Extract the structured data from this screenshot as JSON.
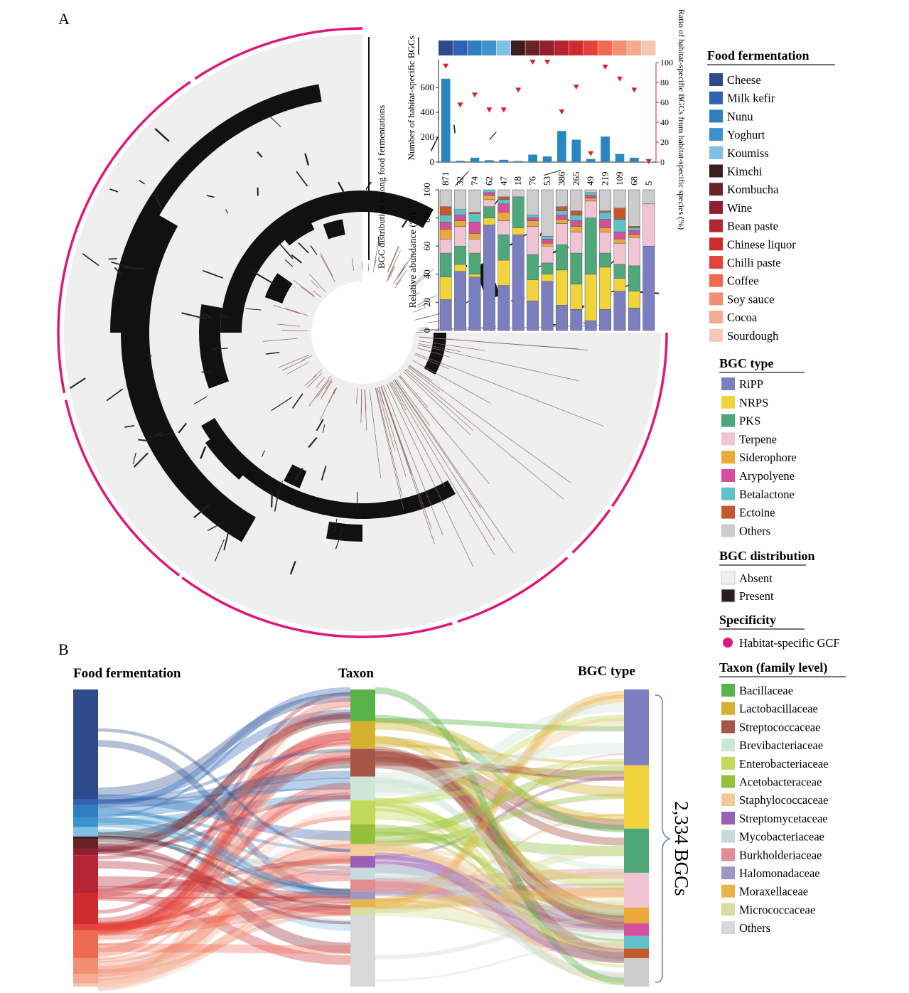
{
  "panels": {
    "a": "A",
    "b": "B"
  },
  "panel_a": {
    "ring_label": "BGC distribution among food fermentations"
  },
  "chart_data": [
    {
      "type": "bar",
      "panel": "A",
      "description_note": "",
      "categories": [
        "Cheese",
        "Milk kefir",
        "Nunu",
        "Yoghurt",
        "Koumiss",
        "Kimchi",
        "Kombucha",
        "Wine",
        "Bean paste",
        "Chinese liquor",
        "Chilli paste",
        "Coffee",
        "Soy sauce",
        "Cocoa",
        "Sourdough"
      ],
      "category_colors": [
        "#2e4a8b",
        "#2f62b0",
        "#2f7fc0",
        "#3b93cc",
        "#7fc0e4",
        "#3c1e1e",
        "#6b2226",
        "#8e2030",
        "#b52432",
        "#cf2a2e",
        "#e6423d",
        "#ef6a4f",
        "#f28f73",
        "#f4ab91",
        "#f6c9b5"
      ],
      "series": [
        {
          "name": "",
          "values": [
            670,
            10,
            35,
            15,
            18,
            8,
            60,
            45,
            250,
            180,
            25,
            205,
            65,
            35,
            3
          ]
        },
        {
          "name": "",
          "values": [
            96,
            57,
            67,
            52,
            52,
            72,
            100,
            100,
            50,
            75,
            8,
            95,
            83,
            72,
            0
          ]
        }
      ],
      "top_labels": [
        "871",
        "32",
        "74",
        "62",
        "47",
        "18",
        "76",
        "53",
        "386",
        "265",
        "49",
        "219",
        "109",
        "68",
        "5"
      ],
      "ylabel": "Number of habitat-specific BGCs",
      "y2label": "Ratio of habitat-specific BGCs from habitat-specific species (%)",
      "ylim": [
        0,
        800
      ],
      "yticks": [
        0,
        200,
        400,
        600
      ],
      "y2lim": [
        0,
        100
      ],
      "y2ticks": [
        0,
        20,
        40,
        60,
        80,
        100
      ],
      "bar_color": "#2a86c0",
      "marker_color": "#e02020"
    },
    {
      "type": "bar",
      "stacked": true,
      "panel": "A",
      "categories": [
        "Cheese",
        "Milk kefir",
        "Nunu",
        "Yoghurt",
        "Koumiss",
        "Kimchi",
        "Kombucha",
        "Wine",
        "Bean paste",
        "Chinese liquor",
        "Chilli paste",
        "Coffee",
        "Soy sauce",
        "Cocoa",
        "Sourdough"
      ],
      "series": [
        {
          "name": "RiPP",
          "color": "#7b7fc0",
          "values": [
            22,
            42,
            38,
            75,
            32,
            68,
            21,
            35,
            18,
            15,
            7,
            15,
            28,
            16,
            60
          ]
        },
        {
          "name": "NRPS",
          "color": "#f0d43a",
          "values": [
            16,
            5,
            2,
            5,
            18,
            5,
            15,
            5,
            25,
            18,
            33,
            30,
            9,
            12,
            0
          ]
        },
        {
          "name": "PKS",
          "color": "#4fa87a",
          "values": [
            17,
            13,
            15,
            8,
            18,
            22,
            18,
            8,
            18,
            22,
            40,
            10,
            10,
            18,
            0
          ]
        },
        {
          "name": "Terpene",
          "color": "#f0c4d2",
          "values": [
            10,
            14,
            10,
            5,
            10,
            0,
            20,
            12,
            15,
            15,
            12,
            15,
            15,
            20,
            30
          ]
        },
        {
          "name": "Siderophore",
          "color": "#eba83a",
          "values": [
            7,
            4,
            4,
            3,
            6,
            0,
            4,
            2,
            3,
            4,
            2,
            3,
            3,
            2,
            0
          ]
        },
        {
          "name": "Arypolyene",
          "color": "#d44f9d",
          "values": [
            5,
            4,
            8,
            2,
            6,
            0,
            2,
            3,
            3,
            4,
            2,
            6,
            5,
            3,
            0
          ]
        },
        {
          "name": "Betalactone",
          "color": "#5fc2c6",
          "values": [
            5,
            4,
            6,
            2,
            3,
            0,
            2,
            2,
            3,
            4,
            2,
            5,
            9,
            2,
            0
          ]
        },
        {
          "name": "Ectoine",
          "color": "#c7582d",
          "values": [
            6,
            0,
            1,
            0,
            2,
            0,
            0,
            0,
            3,
            3,
            0,
            1,
            8,
            1,
            0
          ]
        },
        {
          "name": "Others",
          "color": "#cccccc",
          "values": [
            12,
            14,
            16,
            0,
            5,
            5,
            18,
            33,
            12,
            15,
            2,
            15,
            13,
            26,
            10
          ]
        }
      ],
      "ylabel": "Relative abundance (%)",
      "ylim": [
        0,
        100
      ],
      "yticks": [
        0,
        20,
        40,
        60,
        80,
        100
      ]
    }
  ],
  "legends": {
    "food": {
      "title": "Food fermentation",
      "items": [
        {
          "label": "Cheese",
          "color": "#2e4a8b"
        },
        {
          "label": "Milk kefir",
          "color": "#2f62b0"
        },
        {
          "label": "Nunu",
          "color": "#2f7fc0"
        },
        {
          "label": "Yoghurt",
          "color": "#3b93cc"
        },
        {
          "label": "Koumiss",
          "color": "#7fc0e4"
        },
        {
          "label": "Kimchi",
          "color": "#3c1e1e"
        },
        {
          "label": "Kombucha",
          "color": "#6b2226"
        },
        {
          "label": "Wine",
          "color": "#8e2030"
        },
        {
          "label": "Bean paste",
          "color": "#b52432"
        },
        {
          "label": "Chinese liquor",
          "color": "#cf2a2e"
        },
        {
          "label": "Chilli paste",
          "color": "#e6423d"
        },
        {
          "label": "Coffee",
          "color": "#ef6a4f"
        },
        {
          "label": "Soy sauce",
          "color": "#f28f73"
        },
        {
          "label": "Cocoa",
          "color": "#f4ab91"
        },
        {
          "label": "Sourdough",
          "color": "#f6c9b5"
        }
      ]
    },
    "bgc": {
      "title": "BGC type",
      "items": [
        {
          "label": "RiPP",
          "color": "#7b7fc0"
        },
        {
          "label": "NRPS",
          "color": "#f0d43a"
        },
        {
          "label": "PKS",
          "color": "#4fa87a"
        },
        {
          "label": "Terpene",
          "color": "#f0c4d2"
        },
        {
          "label": "Siderophore",
          "color": "#eba83a"
        },
        {
          "label": "Arypolyene",
          "color": "#d44f9d"
        },
        {
          "label": "Betalactone",
          "color": "#5fc2c6"
        },
        {
          "label": "Ectoine",
          "color": "#c7582d"
        },
        {
          "label": "Others",
          "color": "#cccccc"
        }
      ]
    },
    "distribution": {
      "title": "BGC distribution",
      "items": [
        {
          "label": "Absent",
          "color": "#efefef"
        },
        {
          "label": "Present",
          "color": "#2a1f1f"
        }
      ]
    },
    "specificity": {
      "title": "Specificity",
      "items": [
        {
          "label": "Habitat-specific GCF",
          "color": "#e0177a"
        }
      ]
    },
    "taxon": {
      "title": "Taxon (family level)",
      "items": [
        {
          "label": "Bacillaceae",
          "color": "#5ab349"
        },
        {
          "label": "Lactobacillaceae",
          "color": "#d4b12e"
        },
        {
          "label": "Streptococcaceae",
          "color": "#a65647"
        },
        {
          "label": "Brevibacteriaceae",
          "color": "#cfe6d7"
        },
        {
          "label": "Enterobacteriaceae",
          "color": "#c2d95c"
        },
        {
          "label": "Acetobacteraceae",
          "color": "#94c13c"
        },
        {
          "label": "Staphylococcaceae",
          "color": "#f0cc9a"
        },
        {
          "label": "Streptomycetaceae",
          "color": "#9b5fb6"
        },
        {
          "label": "Mycobacteriaceae",
          "color": "#c6dcdc"
        },
        {
          "label": "Burkholderiaceae",
          "color": "#e08e92"
        },
        {
          "label": "Halomonadaceae",
          "color": "#9f96c4"
        },
        {
          "label": "Moraxellaceae",
          "color": "#e9b34d"
        },
        {
          "label": "Micrococcaceae",
          "color": "#dcdba0"
        },
        {
          "label": "Others",
          "color": "#d8d8d8"
        }
      ]
    }
  },
  "sankey": {
    "headers": {
      "left": "Food fermentation",
      "mid": "Taxon",
      "right": "BGC type"
    },
    "total_label": "2,334 BGCs"
  }
}
